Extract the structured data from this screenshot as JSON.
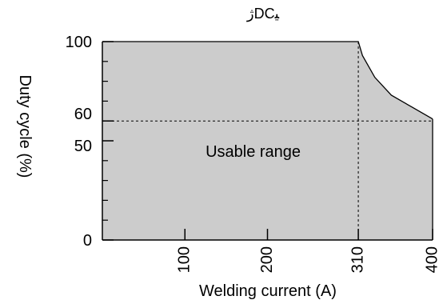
{
  "chart_data": {
    "type": "area",
    "title": "ﮊDCﯿ",
    "xlabel": "Welding current (A)",
    "ylabel": "Duty cycle (%)",
    "xlim": [
      0,
      400
    ],
    "ylim": [
      0,
      100
    ],
    "x_ticks": [
      100,
      200,
      310,
      400
    ],
    "y_ticks": [
      0,
      50,
      60,
      100
    ],
    "x_tick_labels": [
      "100",
      "200",
      "310",
      "400"
    ],
    "y_tick_labels": [
      "0",
      "50",
      "60",
      "100"
    ],
    "y_minor_ticks": [
      10,
      20,
      30,
      40,
      70,
      80,
      90
    ],
    "grid": false,
    "legend": null,
    "annotations": [
      {
        "text": "Usable range",
        "x": 125,
        "y": 42
      }
    ],
    "reference_lines": [
      {
        "axis": "y",
        "value": 60
      },
      {
        "axis": "x",
        "value": 310
      }
    ],
    "series": [
      {
        "x": [
          0,
          310,
          315,
          330,
          350,
          375,
          400
        ],
        "y": [
          100,
          100,
          93,
          82,
          73,
          67,
          61
        ]
      }
    ],
    "colors": {
      "fill": "#cccccc",
      "outline": "#000000",
      "reference": "#000000"
    }
  }
}
